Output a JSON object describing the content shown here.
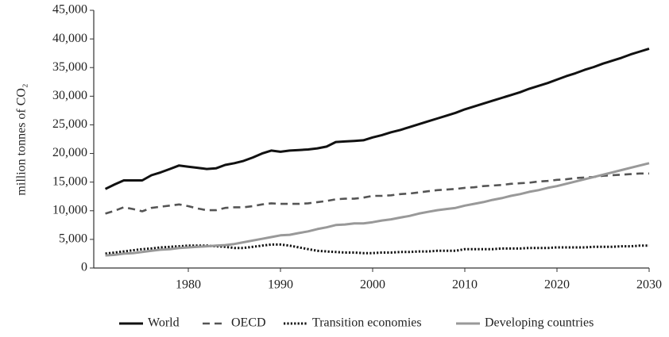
{
  "chart_data": {
    "type": "line",
    "y_label": "million tonnes of CO₂",
    "x": [
      1971,
      1972,
      1973,
      1974,
      1975,
      1976,
      1977,
      1978,
      1979,
      1980,
      1981,
      1982,
      1983,
      1984,
      1985,
      1986,
      1987,
      1988,
      1989,
      1990,
      1991,
      1992,
      1993,
      1994,
      1995,
      1996,
      1997,
      1998,
      1999,
      2000,
      2001,
      2002,
      2003,
      2004,
      2005,
      2006,
      2007,
      2008,
      2009,
      2010,
      2011,
      2012,
      2013,
      2014,
      2015,
      2016,
      2017,
      2018,
      2019,
      2020,
      2021,
      2022,
      2023,
      2024,
      2025,
      2026,
      2027,
      2028,
      2029,
      2030
    ],
    "series": [
      {
        "name": "World",
        "color": "#111111",
        "style": "solid",
        "values": [
          13800,
          14600,
          15300,
          15300,
          15300,
          16200,
          16700,
          17300,
          17900,
          17700,
          17500,
          17300,
          17400,
          18000,
          18300,
          18700,
          19300,
          20000,
          20500,
          20300,
          20500,
          20600,
          20700,
          20900,
          21200,
          22000,
          22100,
          22200,
          22300,
          22800,
          23200,
          23700,
          24100,
          24600,
          25100,
          25600,
          26100,
          26600,
          27100,
          27700,
          28200,
          28700,
          29200,
          29700,
          30200,
          30700,
          31300,
          31800,
          32300,
          32900,
          33500,
          34000,
          34600,
          35100,
          35700,
          36200,
          36700,
          37300,
          37800,
          38300
        ]
      },
      {
        "name": "OECD",
        "color": "#555555",
        "style": "dashed",
        "values": [
          9500,
          10000,
          10600,
          10300,
          9900,
          10500,
          10700,
          10900,
          11100,
          10800,
          10400,
          10100,
          10100,
          10500,
          10600,
          10600,
          10800,
          11100,
          11300,
          11200,
          11200,
          11200,
          11300,
          11500,
          11700,
          12000,
          12100,
          12100,
          12300,
          12600,
          12600,
          12700,
          12900,
          13000,
          13200,
          13400,
          13600,
          13700,
          13800,
          14000,
          14100,
          14300,
          14400,
          14500,
          14700,
          14800,
          14900,
          15100,
          15200,
          15400,
          15500,
          15700,
          15800,
          15900,
          16100,
          16200,
          16300,
          16400,
          16500,
          16500
        ]
      },
      {
        "name": "Transition economies",
        "color": "#111111",
        "style": "dotted",
        "values": [
          2500,
          2700,
          2900,
          3100,
          3300,
          3400,
          3600,
          3700,
          3800,
          3900,
          3900,
          3900,
          3800,
          3700,
          3500,
          3500,
          3700,
          3900,
          4100,
          4100,
          3900,
          3600,
          3300,
          3000,
          2900,
          2800,
          2700,
          2700,
          2600,
          2600,
          2700,
          2700,
          2800,
          2800,
          2900,
          2900,
          3000,
          3000,
          3000,
          3300,
          3300,
          3300,
          3300,
          3400,
          3400,
          3400,
          3500,
          3500,
          3500,
          3600,
          3600,
          3600,
          3600,
          3700,
          3700,
          3700,
          3800,
          3800,
          3900,
          3900
        ]
      },
      {
        "name": "Developing countries",
        "color": "#999999",
        "style": "solid",
        "values": [
          2200,
          2300,
          2500,
          2600,
          2800,
          3000,
          3200,
          3300,
          3500,
          3600,
          3700,
          3800,
          3900,
          4000,
          4200,
          4500,
          4800,
          5100,
          5400,
          5700,
          5800,
          6100,
          6400,
          6800,
          7100,
          7500,
          7600,
          7800,
          7800,
          8000,
          8300,
          8500,
          8800,
          9100,
          9500,
          9800,
          10100,
          10300,
          10500,
          10900,
          11200,
          11500,
          11900,
          12200,
          12600,
          12900,
          13300,
          13600,
          14000,
          14300,
          14700,
          15100,
          15500,
          15900,
          16300,
          16700,
          17100,
          17500,
          17900,
          18300
        ]
      }
    ],
    "xlim": [
      1970,
      2030
    ],
    "xticks": [
      1980,
      1990,
      2000,
      2010,
      2020,
      2030
    ],
    "ylim": [
      0,
      45000
    ],
    "yticks": [
      0,
      {
        "value": 5000,
        "label": "5,000"
      },
      {
        "value": 10000,
        "label": "10,000"
      },
      {
        "value": 15000,
        "label": "15,000"
      },
      {
        "value": 20000,
        "label": "20,000"
      },
      {
        "value": 25000,
        "label": "25,000"
      },
      {
        "value": 30000,
        "label": "30,000"
      },
      {
        "value": 35000,
        "label": "35,000"
      },
      {
        "value": 40000,
        "label": "40,000"
      },
      {
        "value": 45000,
        "label": "45,000"
      }
    ],
    "grid": false,
    "legend": "bottom"
  }
}
